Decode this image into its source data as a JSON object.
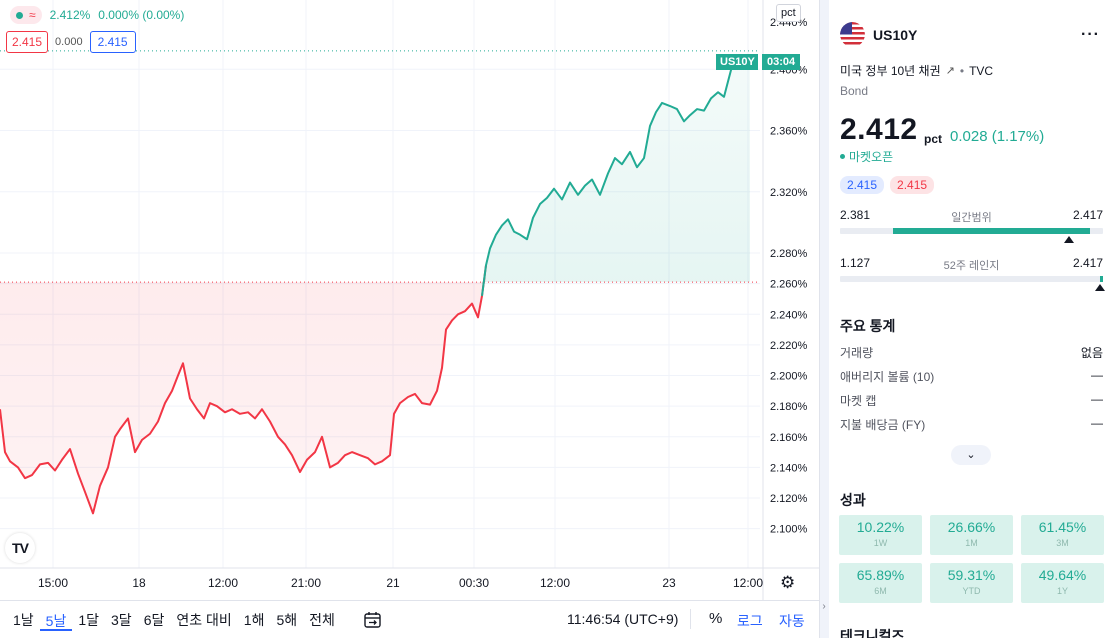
{
  "legend": {
    "price": "2.412%",
    "change": "0.000% (0.00%)",
    "sell": "2.415",
    "spread": "0.000",
    "buy": "2.415"
  },
  "price_axis": {
    "unit_button": "pct",
    "labels": [
      "2.400%",
      "2.360%",
      "2.320%",
      "2.280%",
      "2.260%",
      "2.240%",
      "2.220%",
      "2.200%",
      "2.180%",
      "2.160%",
      "2.140%",
      "2.120%",
      "2.100%"
    ],
    "top_partial_label": "2.440%",
    "symbol_tag": "US10Y",
    "countdown_tag": "03:04"
  },
  "time_axis": {
    "labels": [
      "15:00",
      "18",
      "12:00",
      "21:00",
      "21",
      "00:30",
      "12:00",
      "23",
      "12:00"
    ]
  },
  "chart_data": {
    "type": "area",
    "title": "",
    "xlabel": "",
    "ylabel": "",
    "ylim": [
      2.09,
      2.44
    ],
    "baseline": 2.261,
    "baseline_color_below": "#f23645",
    "baseline_color_above": "#22ab94",
    "x": [
      "15:00",
      "18",
      "12:00",
      "21:00",
      "21",
      "00:30",
      "12:00",
      "23",
      "12:00"
    ],
    "series": [
      {
        "points": [
          [
            0,
            2.178
          ],
          [
            5,
            2.15
          ],
          [
            10,
            2.144
          ],
          [
            18,
            2.14
          ],
          [
            25,
            2.133
          ],
          [
            32,
            2.135
          ],
          [
            40,
            2.142
          ],
          [
            48,
            2.143
          ],
          [
            55,
            2.138
          ],
          [
            62,
            2.145
          ],
          [
            70,
            2.152
          ],
          [
            78,
            2.136
          ],
          [
            85,
            2.124
          ],
          [
            93,
            2.11
          ],
          [
            100,
            2.128
          ],
          [
            108,
            2.14
          ],
          [
            115,
            2.16
          ],
          [
            120,
            2.165
          ],
          [
            128,
            2.172
          ],
          [
            135,
            2.15
          ],
          [
            142,
            2.158
          ],
          [
            150,
            2.162
          ],
          [
            158,
            2.17
          ],
          [
            165,
            2.182
          ],
          [
            172,
            2.19
          ],
          [
            178,
            2.2
          ],
          [
            183,
            2.208
          ],
          [
            190,
            2.185
          ],
          [
            197,
            2.178
          ],
          [
            204,
            2.172
          ],
          [
            210,
            2.182
          ],
          [
            217,
            2.18
          ],
          [
            225,
            2.176
          ],
          [
            232,
            2.178
          ],
          [
            240,
            2.175
          ],
          [
            248,
            2.176
          ],
          [
            255,
            2.172
          ],
          [
            262,
            2.178
          ],
          [
            270,
            2.17
          ],
          [
            278,
            2.16
          ],
          [
            285,
            2.155
          ],
          [
            292,
            2.148
          ],
          [
            300,
            2.137
          ],
          [
            307,
            2.145
          ],
          [
            315,
            2.15
          ],
          [
            322,
            2.16
          ],
          [
            330,
            2.14
          ],
          [
            338,
            2.143
          ],
          [
            345,
            2.148
          ],
          [
            352,
            2.15
          ],
          [
            360,
            2.148
          ],
          [
            368,
            2.146
          ],
          [
            375,
            2.142
          ],
          [
            382,
            2.144
          ],
          [
            390,
            2.148
          ],
          [
            394,
            2.175
          ],
          [
            400,
            2.182
          ],
          [
            408,
            2.186
          ],
          [
            415,
            2.188
          ],
          [
            422,
            2.182
          ],
          [
            430,
            2.181
          ],
          [
            437,
            2.19
          ],
          [
            442,
            2.205
          ],
          [
            446,
            2.23
          ],
          [
            452,
            2.236
          ],
          [
            458,
            2.24
          ],
          [
            465,
            2.242
          ],
          [
            472,
            2.247
          ],
          [
            478,
            2.238
          ],
          [
            482,
            2.252
          ],
          [
            486,
            2.272
          ],
          [
            490,
            2.283
          ],
          [
            496,
            2.292
          ],
          [
            502,
            2.298
          ],
          [
            508,
            2.302
          ],
          [
            514,
            2.294
          ],
          [
            520,
            2.292
          ],
          [
            527,
            2.289
          ],
          [
            533,
            2.303
          ],
          [
            540,
            2.312
          ],
          [
            547,
            2.316
          ],
          [
            554,
            2.322
          ],
          [
            562,
            2.315
          ],
          [
            570,
            2.326
          ],
          [
            578,
            2.318
          ],
          [
            585,
            2.324
          ],
          [
            592,
            2.328
          ],
          [
            600,
            2.318
          ],
          [
            608,
            2.332
          ],
          [
            615,
            2.342
          ],
          [
            622,
            2.338
          ],
          [
            630,
            2.346
          ],
          [
            637,
            2.336
          ],
          [
            644,
            2.342
          ],
          [
            650,
            2.363
          ],
          [
            656,
            2.372
          ],
          [
            662,
            2.378
          ],
          [
            670,
            2.376
          ],
          [
            677,
            2.374
          ],
          [
            684,
            2.366
          ],
          [
            690,
            2.37
          ],
          [
            697,
            2.374
          ],
          [
            704,
            2.373
          ],
          [
            711,
            2.381
          ],
          [
            718,
            2.385
          ],
          [
            724,
            2.382
          ],
          [
            728,
            2.392
          ],
          [
            732,
            2.402
          ],
          [
            738,
            2.405
          ],
          [
            744,
            2.403
          ],
          [
            750,
            2.404
          ]
        ]
      }
    ]
  },
  "colors": {
    "up": "#22ab94",
    "down": "#f23645",
    "accent": "#2962ff"
  },
  "bottom_bar": {
    "ranges": [
      "1날",
      "5날",
      "1달",
      "3달",
      "6달",
      "연초 대비",
      "1해",
      "5해",
      "전체"
    ],
    "active_range": "5날",
    "goto_icon": "calendar-arrow-icon",
    "clock": "11:46:54 (UTC+9)",
    "pct": "%",
    "log": "로그",
    "auto": "자동"
  },
  "panel": {
    "symbol": "US10Y",
    "flag": "us-flag-icon",
    "description": "미국 정부 10년 채권",
    "source": "TVC",
    "type": "Bond",
    "price": "2.412",
    "unit": "pct",
    "change": "0.028 (1.17%)",
    "market_status": "마켓오픈",
    "bid": "2.415",
    "ask": "2.415",
    "day_range": {
      "low": "2.381",
      "label": "일간범위",
      "high": "2.417",
      "fill_from": 0.2,
      "fill_to": 0.95,
      "marker": 0.87
    },
    "year_range": {
      "low": "1.127",
      "label": "52주 레인지",
      "high": "2.417",
      "fill_from": 0.99,
      "fill_to": 1.0,
      "marker": 0.99
    },
    "stats_title": "주요 통계",
    "stats": [
      {
        "label": "거래량",
        "value": "없음"
      },
      {
        "label": "애버리지 볼륨 (10)",
        "value": "—"
      },
      {
        "label": "마켓 캡",
        "value": "—"
      },
      {
        "label": "지불 배당금 (FY)",
        "value": "—"
      }
    ],
    "perf_title": "성과",
    "performance": [
      {
        "value": "10.22%",
        "label": "1W"
      },
      {
        "value": "26.66%",
        "label": "1M"
      },
      {
        "value": "61.45%",
        "label": "3M"
      },
      {
        "value": "65.89%",
        "label": "6M"
      },
      {
        "value": "59.31%",
        "label": "YTD"
      },
      {
        "value": "49.64%",
        "label": "1Y"
      }
    ],
    "tech_title": "테크니컬즈"
  }
}
